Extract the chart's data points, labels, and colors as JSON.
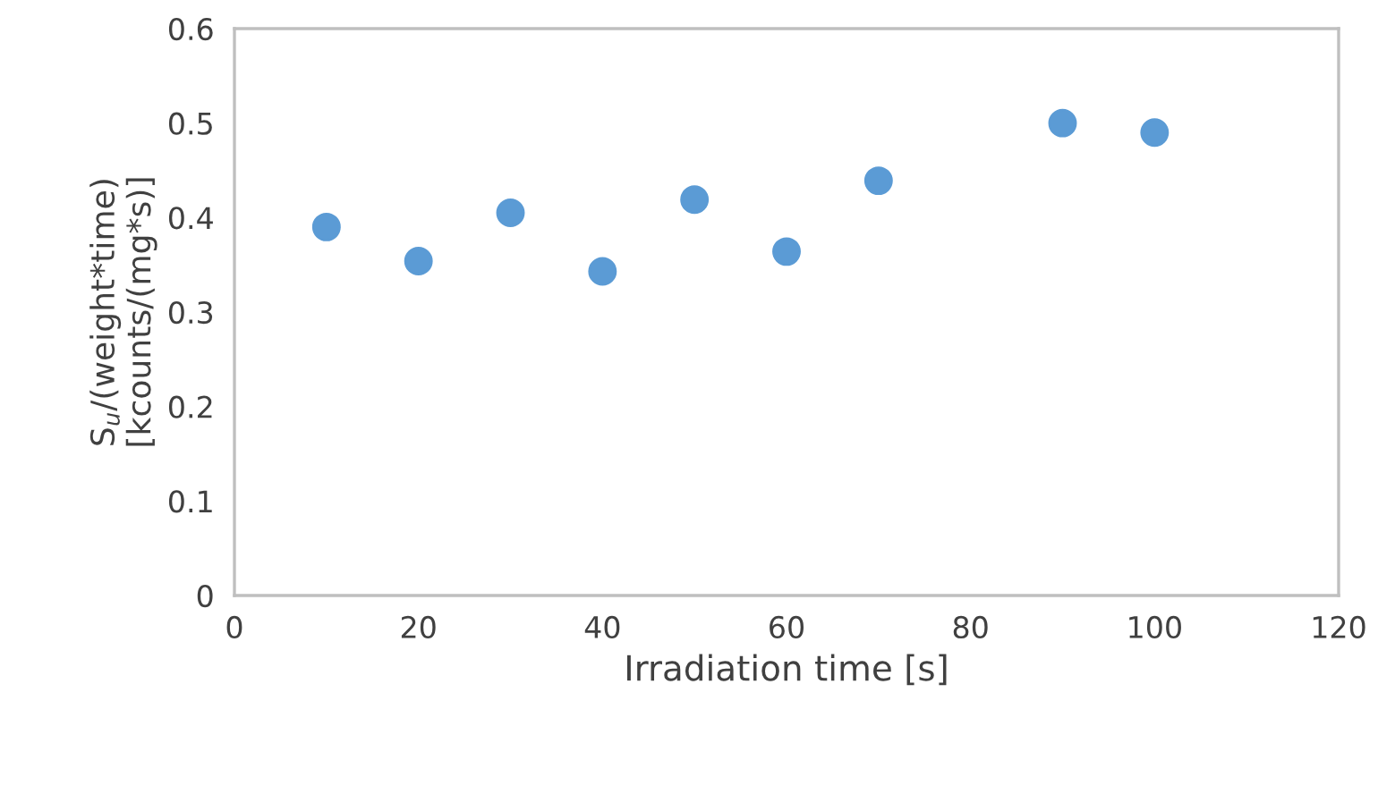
{
  "chart_data": {
    "type": "scatter",
    "xlabel": "Irradiation time [s]",
    "ylabel": "S$_{u}$/(weight*time)\n[kcounts/(mg*s)]",
    "x": [
      10,
      20,
      30,
      40,
      50,
      60,
      70,
      90,
      100
    ],
    "series": [
      {
        "color": "#5b9bd5",
        "values": [
          0.39,
          0.354,
          0.405,
          0.343,
          0.419,
          0.364,
          0.439,
          0.5,
          0.49
        ]
      }
    ],
    "xlim": [
      0,
      120
    ],
    "xticks": [
      0,
      20,
      40,
      60,
      80,
      100,
      120
    ],
    "ylim": [
      0,
      0.6
    ],
    "yticks": [
      0,
      0.1,
      0.2,
      0.3,
      0.4,
      0.5,
      0.6
    ],
    "marker": "circle",
    "grid": false
  }
}
